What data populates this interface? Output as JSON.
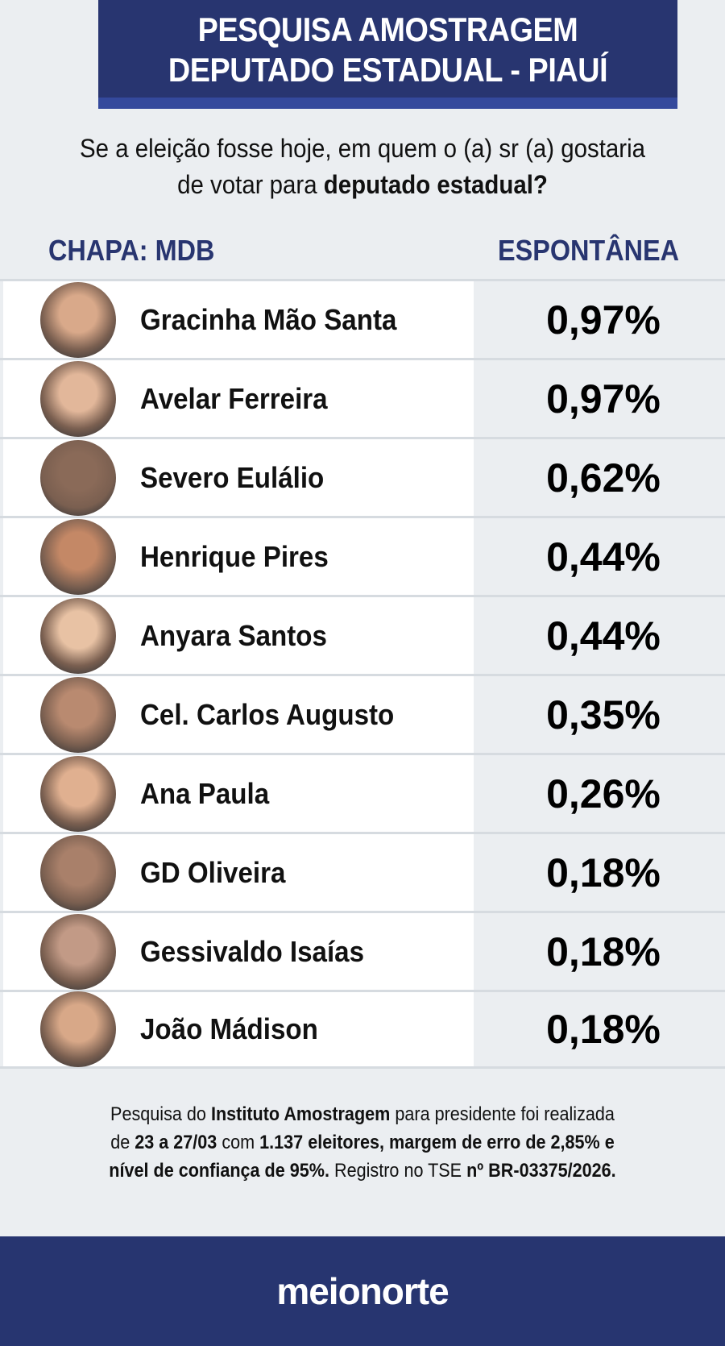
{
  "header": {
    "line1": "PESQUISA AMOSTRAGEM",
    "line2": "DEPUTADO ESTADUAL - PIAUÍ"
  },
  "question": {
    "normal": "Se a eleição fosse hoje, em quem o (a) sr (a) gostaria de votar para ",
    "bold": "deputado estadual?"
  },
  "columns": {
    "left": "CHAPA: MDB",
    "right": "ESPONTÂNEA"
  },
  "candidates": [
    {
      "name": "Gracinha Mão Santa",
      "value": "0,97%"
    },
    {
      "name": "Avelar Ferreira",
      "value": "0,97%"
    },
    {
      "name": "Severo Eulálio",
      "value": "0,62%"
    },
    {
      "name": "Henrique Pires",
      "value": "0,44%"
    },
    {
      "name": "Anyara Santos",
      "value": "0,44%"
    },
    {
      "name": "Cel. Carlos Augusto",
      "value": "0,35%"
    },
    {
      "name": "Ana Paula",
      "value": "0,26%"
    },
    {
      "name": "GD Oliveira",
      "value": "0,18%"
    },
    {
      "name": "Gessivaldo Isaías",
      "value": "0,18%"
    },
    {
      "name": "João Mádison",
      "value": "0,18%"
    }
  ],
  "footer": {
    "t1": "Pesquisa do ",
    "b1": "Instituto Amostragem",
    "t2": " para presidente foi realizada de ",
    "b2": "23 a 27/03",
    "t3": " com ",
    "b3": "1.137 eleitores, margem de erro de 2,85% e nível de confiança de 95%.",
    "t4": " Registro no TSE ",
    "b4": "nº BR-03375/2026."
  },
  "brand": {
    "logo": "meionorte"
  },
  "colors": {
    "navy": "#283570",
    "stripe": "#34499c",
    "background": "#ebeef1"
  }
}
